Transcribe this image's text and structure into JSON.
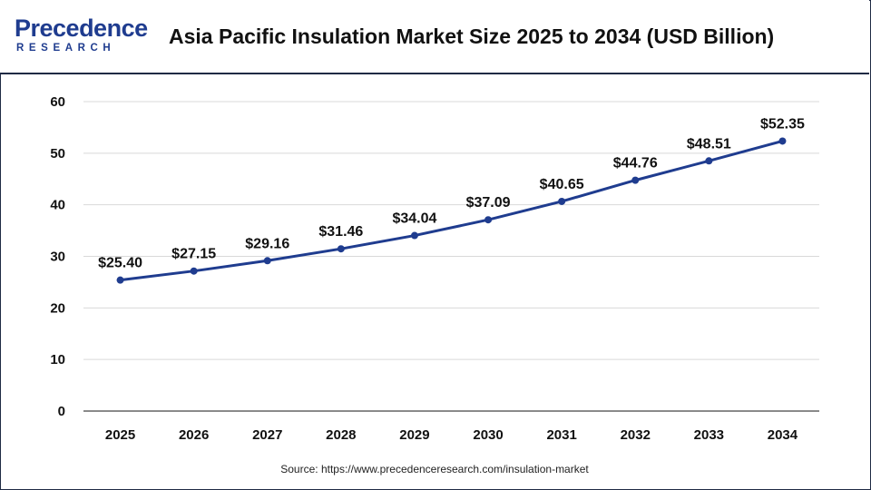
{
  "header": {
    "logo_top": "Precedence",
    "logo_bottom": "RESEARCH",
    "title": "Asia Pacific Insulation Market Size 2025 to 2034 (USD Billion)"
  },
  "footer": {
    "source": "Source: https://www.precedenceresearch.com/insulation-market"
  },
  "chart_data": {
    "type": "line",
    "title": "Asia Pacific Insulation Market Size 2025 to 2034 (USD Billion)",
    "xlabel": "",
    "ylabel": "",
    "categories": [
      "2025",
      "2026",
      "2027",
      "2028",
      "2029",
      "2030",
      "2031",
      "2032",
      "2033",
      "2034"
    ],
    "series": [
      {
        "values": [
          25.4,
          27.15,
          29.16,
          31.46,
          34.04,
          37.09,
          40.65,
          44.76,
          48.51,
          52.35
        ],
        "labels": [
          "$25.40",
          "$27.15",
          "$29.16",
          "$31.46",
          "$34.04",
          "$37.09",
          "$40.65",
          "$44.76",
          "$48.51",
          "$52.35"
        ]
      }
    ],
    "ylim": [
      0,
      60
    ],
    "yticks": [
      "0",
      "10",
      "20",
      "30",
      "40",
      "50",
      "60"
    ],
    "grid": true,
    "legend": "none",
    "line_color": "#1f3c8f",
    "grid_color": "#d9d9d9"
  }
}
